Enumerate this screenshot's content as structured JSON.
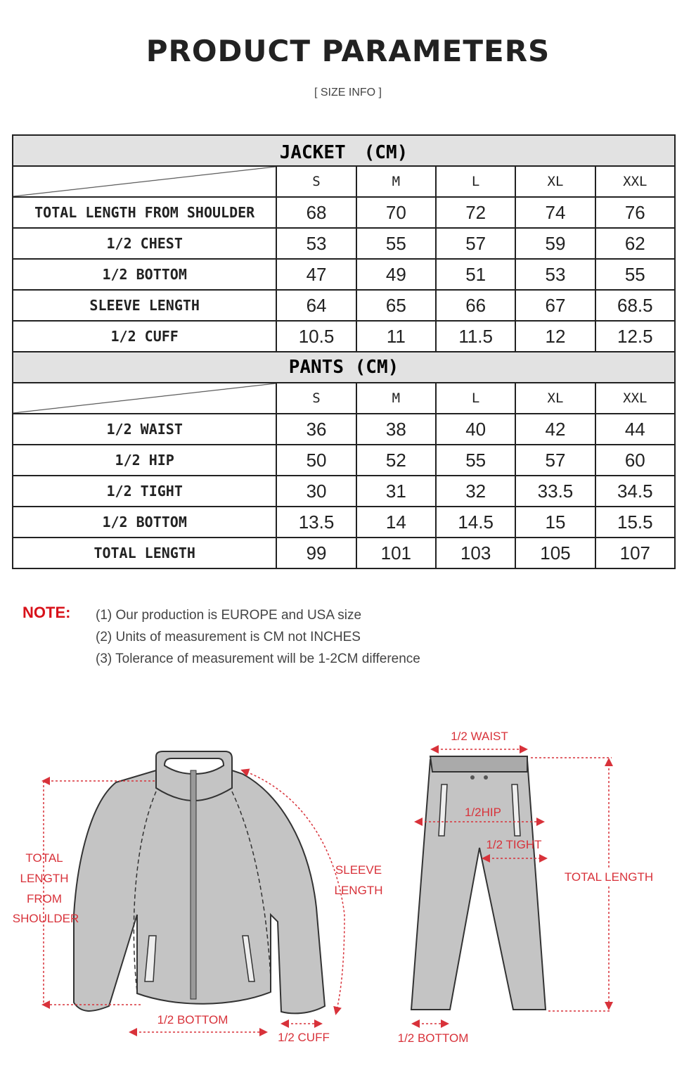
{
  "header": {
    "title": "PRODUCT PARAMETERS",
    "subtitle": "[ SIZE INFO ]"
  },
  "jacket": {
    "title": "JACKET　(CM)",
    "sizes": [
      "S",
      "M",
      "L",
      "XL",
      "XXL"
    ],
    "rows": [
      {
        "label": "TOTAL LENGTH FROM SHOULDER",
        "values": [
          "68",
          "70",
          "72",
          "74",
          "76"
        ]
      },
      {
        "label": "1/2 CHEST",
        "values": [
          "53",
          "55",
          "57",
          "59",
          "62"
        ]
      },
      {
        "label": "1/2 BOTTOM",
        "values": [
          "47",
          "49",
          "51",
          "53",
          "55"
        ]
      },
      {
        "label": "SLEEVE LENGTH",
        "values": [
          "64",
          "65",
          "66",
          "67",
          "68.5"
        ]
      },
      {
        "label": "1/2 CUFF",
        "values": [
          "10.5",
          "11",
          "11.5",
          "12",
          "12.5"
        ]
      }
    ]
  },
  "pants": {
    "title": "PANTS (CM)",
    "sizes": [
      "S",
      "M",
      "L",
      "XL",
      "XXL"
    ],
    "rows": [
      {
        "label": "1/2 WAIST",
        "values": [
          "36",
          "38",
          "40",
          "42",
          "44"
        ]
      },
      {
        "label": "1/2 HIP",
        "values": [
          "50",
          "52",
          "55",
          "57",
          "60"
        ]
      },
      {
        "label": "1/2 TIGHT",
        "values": [
          "30",
          "31",
          "32",
          "33.5",
          "34.5"
        ]
      },
      {
        "label": "1/2 BOTTOM",
        "values": [
          "13.5",
          "14",
          "14.5",
          "15",
          "15.5"
        ]
      },
      {
        "label": "TOTAL LENGTH",
        "values": [
          "99",
          "101",
          "103",
          "105",
          "107"
        ]
      }
    ]
  },
  "notes": {
    "label": "NOTE:",
    "items": [
      "(1) Our production is EUROPE and USA size",
      "(2) Units of measurement is CM not INCHES",
      "(3) Tolerance of measurement will be 1-2CM difference"
    ]
  },
  "diagram": {
    "jacket": {
      "total_length": [
        "TOTAL",
        "LENGTH",
        "FROM",
        "SHOULDER"
      ],
      "sleeve_length": [
        "SLEEVE",
        "LENGTH"
      ],
      "bottom": "1/2 BOTTOM",
      "cuff": "1/2 CUFF"
    },
    "pants": {
      "waist": "1/2 WAIST",
      "hip": "1/2HIP",
      "tight": "1/2 TIGHT",
      "total_length": "TOTAL LENGTH",
      "bottom": "1/2 BOTTOM"
    }
  },
  "colors": {
    "accent": "#d8121a",
    "header_bg": "#e2e2e2",
    "garment": "#c4c4c4"
  }
}
